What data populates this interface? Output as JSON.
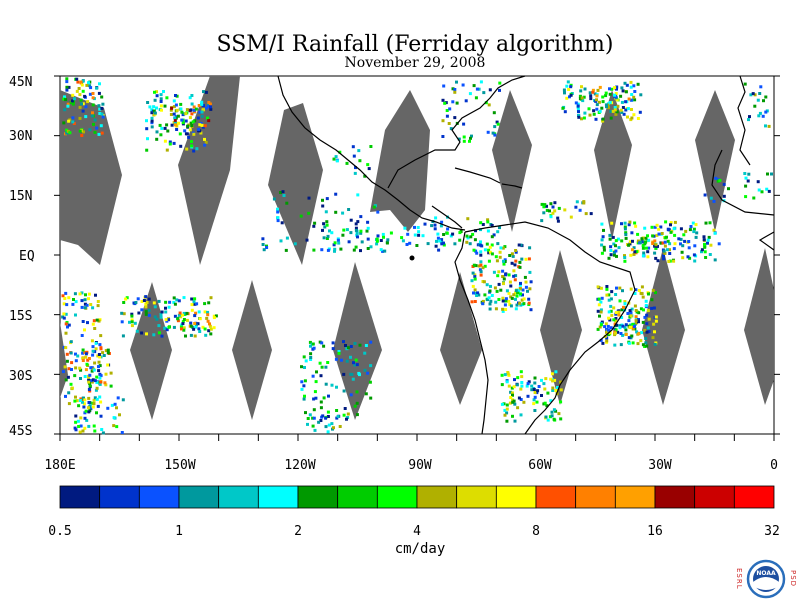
{
  "title": "SSM/I Rainfall (Ferriday algorithm)",
  "date": "November 29, 2008",
  "lat_labels": [
    "45N",
    "30N",
    "15N",
    "EQ",
    "15S",
    "30S",
    "45S"
  ],
  "lon_labels": [
    "180E",
    "150W",
    "120W",
    "90W",
    "60W",
    "30W",
    "0"
  ],
  "colorbar": {
    "ticks": [
      "0.5",
      "1",
      "2",
      "4",
      "8",
      "16",
      "32"
    ],
    "units": "cm/day",
    "colors": [
      "#001a80",
      "#0033cc",
      "#0a52ff",
      "#00999e",
      "#00c8c8",
      "#00ffff",
      "#009900",
      "#00cc00",
      "#00ff00",
      "#b0b000",
      "#dddd00",
      "#ffff00",
      "#ff5000",
      "#ff8000",
      "#ffa000",
      "#990000",
      "#cc0000",
      "#ff0000"
    ]
  },
  "swath_color": "#666666",
  "logo": {
    "left_text": "ESRL",
    "right_text": "PSD",
    "center_text": "NOAA"
  }
}
